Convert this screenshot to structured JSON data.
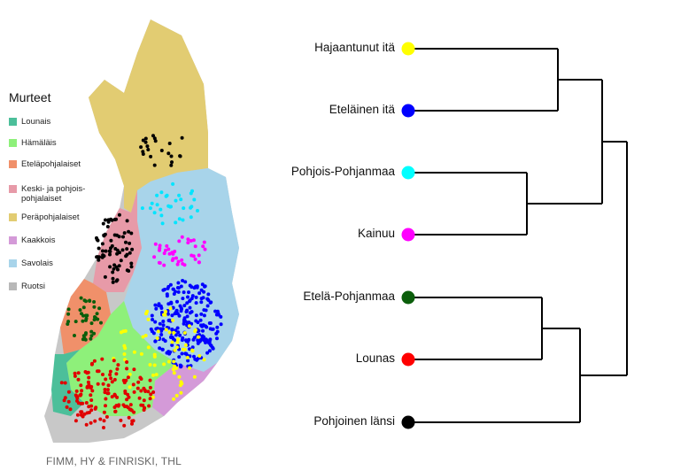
{
  "map": {
    "legend_title": "Murteet",
    "legend": [
      {
        "label": "Lounais",
        "color": "#4cbf9a"
      },
      {
        "label": "Hämäläis",
        "color": "#8ef07a"
      },
      {
        "label": "Eteläpohjalaiset",
        "color": "#f0906a"
      },
      {
        "label": "Keski- ja pohjois-",
        "label2": "pohjalaiset",
        "color": "#e79aa8"
      },
      {
        "label": "Peräpohjalaiset",
        "color": "#e2cc72"
      },
      {
        "label": "Kaakkois",
        "color": "#d49ad8"
      },
      {
        "label": "Savolais",
        "color": "#a8d4ea"
      },
      {
        "label": "Ruotsi",
        "color": "#b8b8b8"
      }
    ],
    "credit": "FIMM, HY & FINRISKI, THL"
  },
  "dendrogram": {
    "leaves": [
      {
        "label": "Hajaantunut itä",
        "color": "#ffff00"
      },
      {
        "label": "Eteläinen itä",
        "color": "#0000ff"
      },
      {
        "label": "Pohjois-Pohjanmaa",
        "color": "#00ffff"
      },
      {
        "label": "Kainuu",
        "color": "#ff00ff"
      },
      {
        "label": "Etelä-Pohjanmaa",
        "color": "#0b5e0b"
      },
      {
        "label": "Lounas",
        "color": "#ff0000"
      },
      {
        "label": "Pohjoinen länsi",
        "color": "#000000"
      }
    ]
  }
}
